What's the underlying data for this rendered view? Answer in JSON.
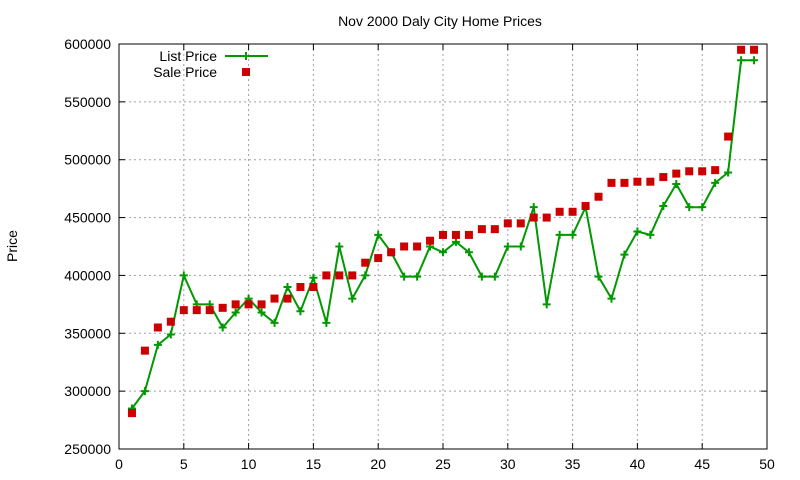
{
  "chart_data": {
    "type": "line",
    "title": "Nov 2000 Daly City Home Prices",
    "xlabel": "",
    "ylabel": "Price",
    "xlim": [
      0,
      50
    ],
    "ylim": [
      250000,
      600000
    ],
    "xticks": [
      0,
      5,
      10,
      15,
      20,
      25,
      30,
      35,
      40,
      45,
      50
    ],
    "yticks": [
      250000,
      300000,
      350000,
      400000,
      450000,
      500000,
      550000,
      600000
    ],
    "grid": true,
    "legend_position": "top-left",
    "series": [
      {
        "name": "List Price",
        "color": "#009900",
        "marker": "plus",
        "line": true,
        "x": [
          1,
          2,
          3,
          4,
          5,
          6,
          7,
          8,
          9,
          10,
          11,
          12,
          13,
          14,
          15,
          16,
          17,
          18,
          19,
          20,
          21,
          22,
          23,
          24,
          25,
          26,
          27,
          28,
          29,
          30,
          31,
          32,
          33,
          34,
          35,
          36,
          37,
          38,
          39,
          40,
          41,
          42,
          43,
          44,
          45,
          46,
          47,
          48,
          49
        ],
        "y": [
          285000,
          300000,
          340000,
          349000,
          400000,
          375000,
          375000,
          355000,
          368000,
          380000,
          368000,
          359000,
          390000,
          369000,
          398000,
          359000,
          425000,
          380000,
          400000,
          435000,
          420000,
          399000,
          399000,
          425000,
          420000,
          429000,
          420000,
          399000,
          399000,
          425000,
          425000,
          459000,
          375000,
          435000,
          435000,
          459000,
          399000,
          380000,
          418000,
          438000,
          435000,
          460000,
          479000,
          459000,
          459000,
          480000,
          489000,
          586000,
          586000
        ]
      },
      {
        "name": "Sale Price",
        "color": "#cc0000",
        "marker": "square",
        "line": false,
        "x": [
          1,
          2,
          3,
          4,
          5,
          6,
          7,
          8,
          9,
          10,
          11,
          12,
          13,
          14,
          15,
          16,
          17,
          18,
          19,
          20,
          21,
          22,
          23,
          24,
          25,
          26,
          27,
          28,
          29,
          30,
          31,
          32,
          33,
          34,
          35,
          36,
          37,
          38,
          39,
          40,
          41,
          42,
          43,
          44,
          45,
          46,
          47,
          48,
          49
        ],
        "y": [
          281000,
          335000,
          355000,
          360000,
          370000,
          370000,
          370000,
          372000,
          375000,
          375000,
          375000,
          380000,
          380000,
          390000,
          390000,
          400000,
          400000,
          400000,
          411000,
          415000,
          420000,
          425000,
          425000,
          430000,
          435000,
          435000,
          435000,
          440000,
          440000,
          445000,
          445000,
          450000,
          450000,
          455000,
          455000,
          460000,
          468000,
          480000,
          480000,
          481000,
          481000,
          485000,
          488000,
          490000,
          490000,
          491000,
          520000,
          595000,
          595000
        ]
      }
    ]
  }
}
